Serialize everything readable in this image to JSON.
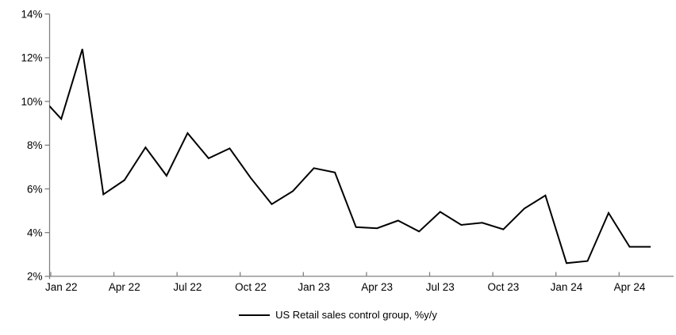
{
  "chart_data": {
    "type": "line",
    "x": [
      "Dec 21",
      "Jan 22",
      "Feb 22",
      "Mar 22",
      "Apr 22",
      "May 22",
      "Jun 22",
      "Jul 22",
      "Aug 22",
      "Sep 22",
      "Oct 22",
      "Nov 22",
      "Dec 22",
      "Jan 23",
      "Feb 23",
      "Mar 23",
      "Apr 23",
      "May 23",
      "Jun 23",
      "Jul 23",
      "Aug 23",
      "Sep 23",
      "Oct 23",
      "Nov 23",
      "Dec 23",
      "Jan 24",
      "Feb 24",
      "Mar 24",
      "Apr 24",
      "May 24"
    ],
    "series": [
      {
        "name": "US Retail sales control group, %y/y",
        "color": "#000000",
        "values": [
          10.25,
          9.2,
          12.4,
          5.75,
          6.4,
          7.9,
          6.6,
          8.55,
          7.4,
          7.85,
          6.5,
          5.3,
          5.9,
          6.95,
          6.75,
          4.25,
          4.2,
          4.55,
          4.05,
          4.95,
          4.35,
          4.45,
          4.15,
          5.1,
          5.7,
          2.6,
          2.7,
          4.9,
          3.35,
          3.35
        ]
      }
    ],
    "x_tick_labels": [
      "Jan 22",
      "Apr 22",
      "Jul 22",
      "Oct 22",
      "Jan 23",
      "Apr 23",
      "Jul 23",
      "Oct 23",
      "Jan 24",
      "Apr 24"
    ],
    "x_tick_every_months": 3,
    "y_tick_labels": [
      "2%",
      "4%",
      "6%",
      "8%",
      "10%",
      "12%",
      "14%"
    ],
    "ylim": [
      2,
      14
    ],
    "grid": "off",
    "legend_position": "bottom-center",
    "first_point_clipped_at_axis": true
  },
  "legend": {
    "label": "US Retail sales control group, %y/y"
  },
  "colors": {
    "line": "#000000",
    "axis": "#808080",
    "text": "#000000",
    "background": "#ffffff"
  }
}
